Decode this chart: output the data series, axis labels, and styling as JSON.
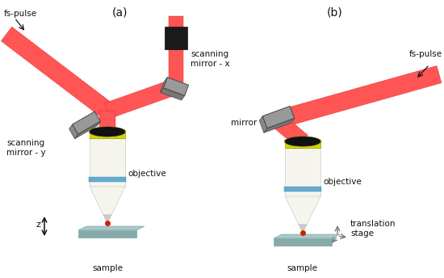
{
  "bg_color": "#ffffff",
  "title_a": "(a)",
  "title_b": "(b)",
  "label_a_fspulse": "fs-pulse",
  "label_a_scanx": "scanning\nmirror - x",
  "label_a_scany": "scanning\nmirror - y",
  "label_a_obj": "objective",
  "label_a_sample": "sample",
  "label_a_z": "z",
  "label_b_fspulse": "fs-pulse",
  "label_b_mirror": "mirror",
  "label_b_obj": "objective",
  "label_b_sample": "sample",
  "label_b_ts": "translation\nstage",
  "laser_color": "#ff5555",
  "laser_alpha_color": "#ff9999",
  "laser_edge": "#dd2222",
  "mirror_face": "#999999",
  "mirror_top": "#777777",
  "mirror_dark": "#444444",
  "obj_body": "#f5f5ee",
  "obj_yellow": "#d4d400",
  "obj_ring": "#66aacc",
  "obj_black": "#111111",
  "obj_cone": "#e8e8e0",
  "sample_top": "#adc8c8",
  "sample_front": "#88aaaa",
  "text_color": "#111111",
  "arrow_color": "#333333",
  "red_dot": "#cc2200"
}
